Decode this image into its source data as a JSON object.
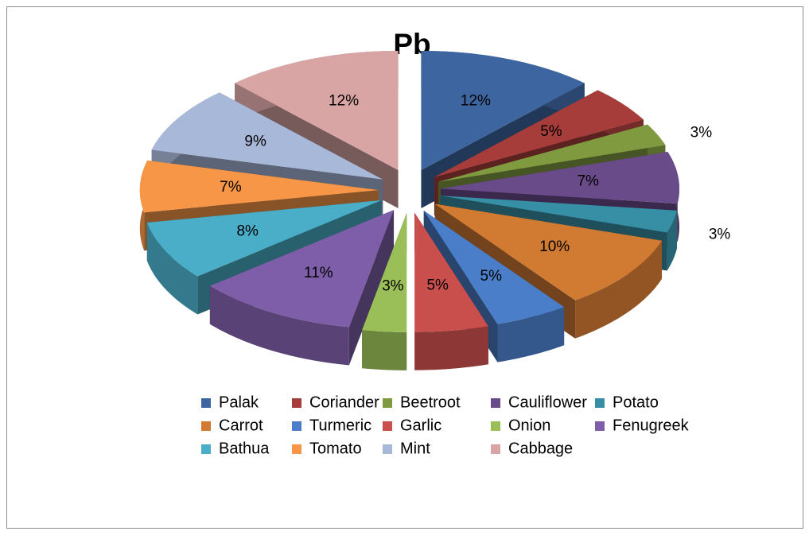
{
  "chart_data": {
    "type": "pie3d",
    "title": "Pb",
    "categories": [
      "Palak",
      "Coriander",
      "Beetroot",
      "Cauliflower",
      "Potato",
      "Carrot",
      "Turmeric",
      "Garlic",
      "Onion",
      "Fenugreek",
      "Bathua",
      "Tomato",
      "Mint",
      "Cabbage"
    ],
    "values": [
      12,
      5,
      3,
      7,
      3,
      10,
      5,
      5,
      3,
      11,
      8,
      7,
      9,
      12
    ],
    "value_labels": [
      "12%",
      "5%",
      "3%",
      "7%",
      "3%",
      "10%",
      "5%",
      "5%",
      "3%",
      "11%",
      "8%",
      "7%",
      "9%",
      "12%"
    ],
    "colors": [
      "#3d66a0",
      "#a63d3b",
      "#7f9a3f",
      "#694b8a",
      "#378fa6",
      "#d07a32",
      "#4b7ec8",
      "#c94f4d",
      "#9bbf58",
      "#7e5ea8",
      "#4aaec8",
      "#f79646",
      "#a8b8d9",
      "#d9a4a4"
    ],
    "legend": "bottom"
  }
}
